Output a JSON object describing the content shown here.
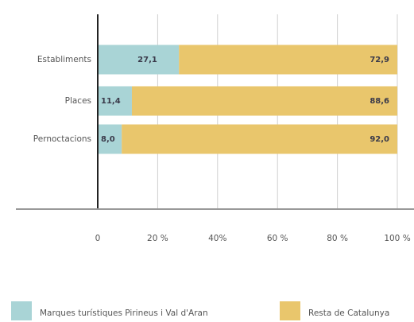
{
  "chart_data": {
    "type": "stacked-barh",
    "categories": [
      "Establiments",
      "Places",
      "Pernoctacions"
    ],
    "series": [
      {
        "name": "Marques turístiques Pirineus i Val d'Aran",
        "color": "#a9d4d6",
        "values": [
          27.1,
          11.4,
          8.0
        ],
        "value_labels": [
          "27,1",
          "11,4",
          "8,0"
        ]
      },
      {
        "name": "Resta de Catalunya",
        "color": "#e9c66c",
        "values": [
          72.9,
          88.6,
          92.0
        ],
        "value_labels": [
          "72,9",
          "88,6",
          "92,0"
        ]
      }
    ],
    "xlim": [
      0,
      100
    ],
    "xticks": [
      0,
      {
        "value": 20,
        "label": "20 %"
      },
      {
        "value": 40,
        "label": "40%"
      },
      {
        "value": 60,
        "label": "60 %"
      },
      {
        "value": 80,
        "label": "80 %"
      },
      {
        "value": 100,
        "label": "100 %"
      }
    ],
    "grid": true
  }
}
